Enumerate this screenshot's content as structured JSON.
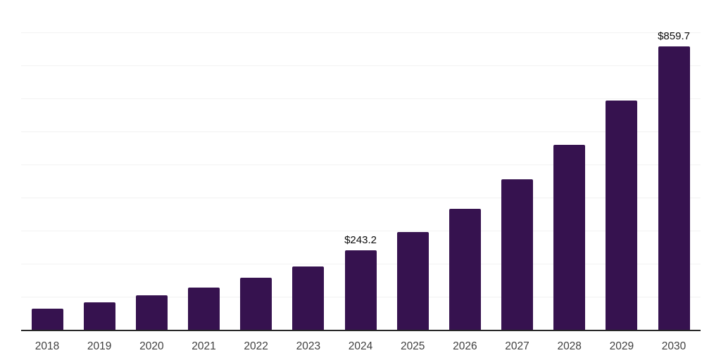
{
  "page": {
    "background": "#ffffff"
  },
  "chart_data": {
    "type": "bar",
    "title": "",
    "subtitle": "",
    "xlabel": "",
    "ylabel": "",
    "categories": [
      "2018",
      "2019",
      "2020",
      "2021",
      "2022",
      "2023",
      "2024",
      "2025",
      "2026",
      "2027",
      "2028",
      "2029",
      "2030"
    ],
    "values": [
      65,
      85,
      106,
      130,
      160,
      194,
      243.2,
      298,
      368,
      457,
      562,
      696,
      859.7
    ],
    "data_labels": [
      "",
      "",
      "",
      "",
      "",
      "",
      "$243.2",
      "",
      "",
      "",
      "",
      "",
      "$859.7"
    ],
    "ylim": [
      0,
      1000
    ],
    "grid": {
      "visible": true,
      "step": 100,
      "axis": "y"
    },
    "legend": "none",
    "colors": {
      "bar": "#36124F",
      "axis_line": "#282828",
      "gridline": "#f2f2f2",
      "tick_label": "#404040",
      "data_label": "#0a0a0a"
    }
  }
}
